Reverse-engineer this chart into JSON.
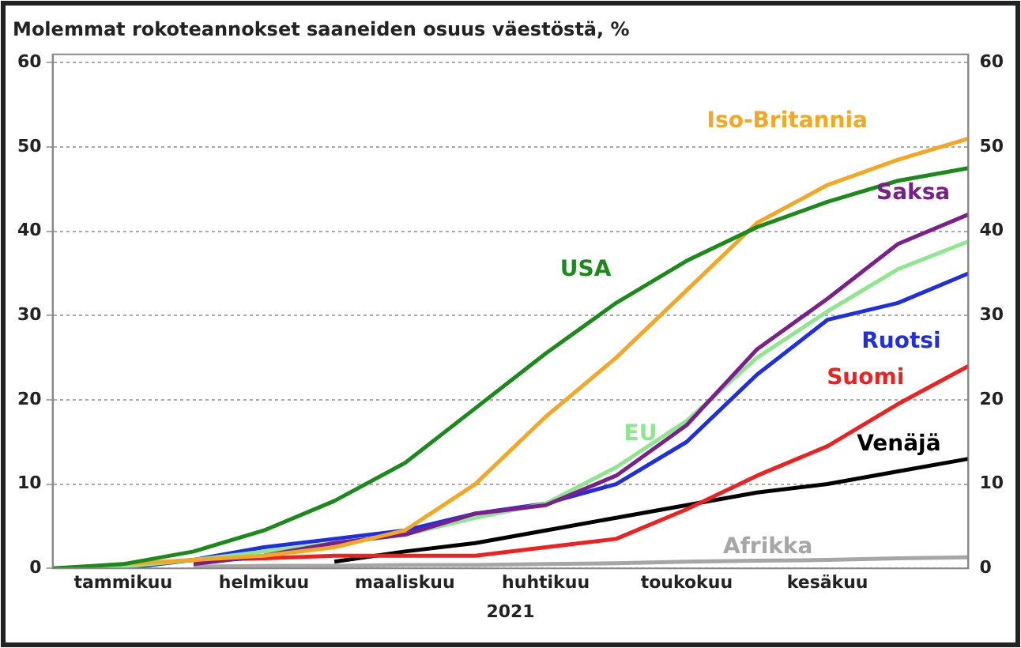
{
  "chart_data": {
    "type": "line",
    "title": "Molemmat rokoteannokset saaneiden osuus väestöstä, %",
    "xlabel": "2021",
    "categories": [
      null,
      "tammikuu",
      null,
      "helmikuu",
      null,
      "maaliskuu",
      null,
      "huhtikuu",
      null,
      "toukokuu",
      null,
      "kesäkuu",
      null,
      null
    ],
    "ylim": [
      0,
      61
    ],
    "yticks": [
      0,
      10,
      20,
      30,
      40,
      50,
      60
    ],
    "y2lim": [
      0,
      61
    ],
    "y2ticks": [
      0,
      10,
      20,
      30,
      40,
      50,
      60
    ],
    "grid": "y",
    "legend": false,
    "marker": "none",
    "line_style": "solid",
    "series": [
      {
        "name": "USA",
        "color": "#1a8a1a",
        "values": [
          0,
          0.5,
          2,
          4.5,
          8,
          12.5,
          19,
          25.5,
          31.5,
          36.5,
          40.5,
          43.5,
          46,
          47.5
        ]
      },
      {
        "name": "Iso-Britannia",
        "color": "#f5a623",
        "values": [
          null,
          0.5,
          1,
          1.5,
          2.5,
          4.5,
          10,
          18,
          25,
          33,
          41,
          45.5,
          48.5,
          51
        ]
      },
      {
        "name": "Saksa",
        "color": "#7b1f8c",
        "values": [
          null,
          null,
          0.5,
          1.5,
          3,
          4,
          6.5,
          7.5,
          11,
          17,
          26,
          32,
          38.5,
          42
        ]
      },
      {
        "name": "EU",
        "color": "#8ee68e",
        "values": [
          0,
          0.2,
          1,
          2,
          3,
          4,
          6,
          7.7,
          12,
          17.5,
          25,
          30.5,
          35.5,
          38.8
        ]
      },
      {
        "name": "Ruotsi",
        "color": "#1f2fe0",
        "values": [
          null,
          0,
          1,
          2.5,
          3.5,
          4.5,
          6.5,
          7.7,
          10,
          15,
          23,
          29.5,
          31.5,
          35
        ]
      },
      {
        "name": "Suomi",
        "color": "#f02020",
        "values": [
          null,
          null,
          1,
          1.2,
          1.5,
          1.5,
          1.5,
          2.5,
          3.5,
          7,
          11,
          14.5,
          19.5,
          24
        ]
      },
      {
        "name": "Venäjä",
        "color": "#000000",
        "values": [
          null,
          null,
          null,
          null,
          0.8,
          2,
          3,
          4.5,
          6,
          7.5,
          9,
          10,
          11.5,
          13
        ]
      },
      {
        "name": "Afrikka",
        "color": "#a6a6a6",
        "values": [
          null,
          null,
          0.2,
          0.3,
          0.3,
          0.4,
          0.4,
          0.5,
          0.6,
          0.8,
          0.9,
          1,
          1.2,
          1.3
        ]
      }
    ]
  }
}
